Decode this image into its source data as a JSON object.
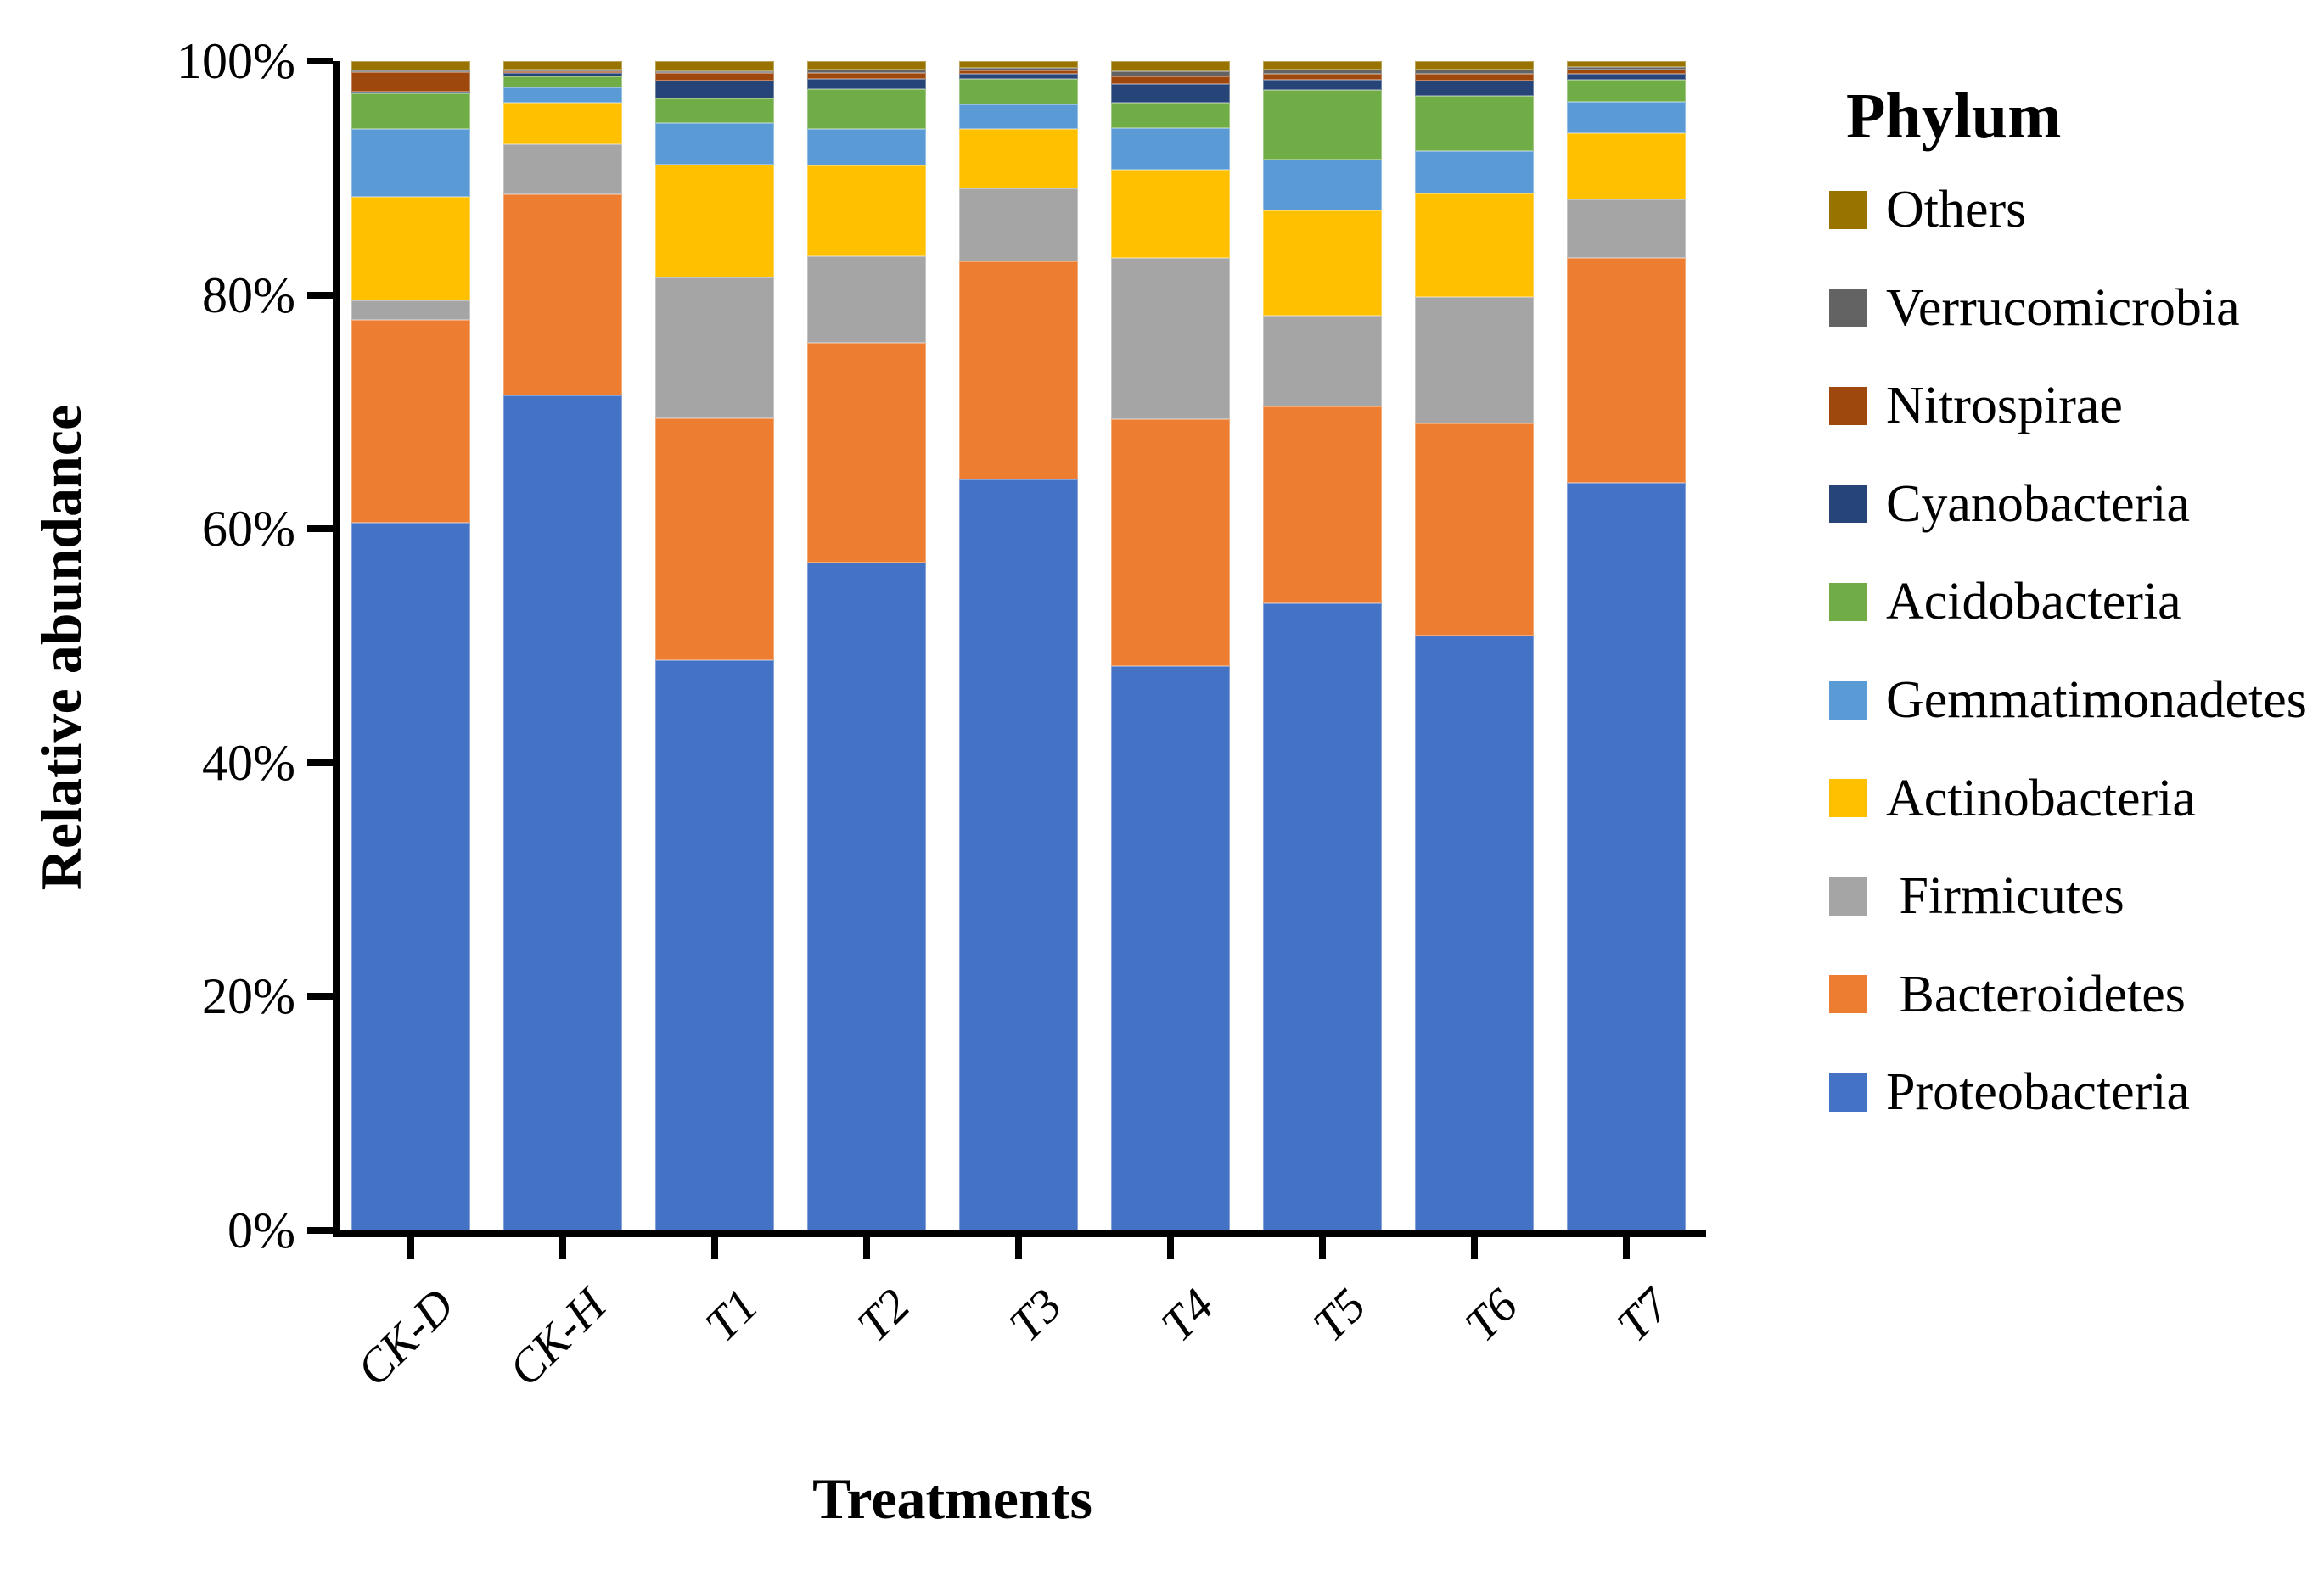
{
  "chart_data": {
    "type": "bar",
    "stacked": true,
    "percent_stacked": true,
    "grid": false,
    "legend_position": "right",
    "legend_title": "Phylum",
    "xlabel": "Treatments",
    "ylabel": "Relative abundance",
    "ylim": [
      0,
      100
    ],
    "y_ticks": [
      {
        "value": 0,
        "label": "0%"
      },
      {
        "value": 20,
        "label": "20%"
      },
      {
        "value": 40,
        "label": "40%"
      },
      {
        "value": 60,
        "label": "60%"
      },
      {
        "value": 80,
        "label": "80%"
      },
      {
        "value": 100,
        "label": "100%"
      }
    ],
    "categories": [
      "CK-D",
      "CK-H",
      "T1",
      "T2",
      "T3",
      "T4",
      "T5",
      "T6",
      "T7"
    ],
    "series_bottom_to_top": [
      {
        "name": "Proteobacteria",
        "color": "#4472C4",
        "values": [
          60.55,
          71.45,
          48.8,
          57.1,
          64.2,
          48.25,
          53.6,
          50.9,
          63.9
        ]
      },
      {
        "name": "Bacteroidetes",
        "color": "#ED7D31",
        "values": [
          17.35,
          17.25,
          20.7,
          18.8,
          18.7,
          21.15,
          16.9,
          18.15,
          19.25
        ]
      },
      {
        "name": "Firmicutes",
        "color": "#A5A5A5",
        "values": [
          1.7,
          4.3,
          12.05,
          7.4,
          6.2,
          13.75,
          7.75,
          10.75,
          5.05
        ]
      },
      {
        "name": "Actinobacteria",
        "color": "#FFC000",
        "values": [
          8.8,
          3.5,
          9.65,
          7.8,
          5.1,
          7.55,
          9.0,
          8.85,
          5.65
        ]
      },
      {
        "name": "Gemmatimonadetes",
        "color": "#5B9BD5",
        "values": [
          5.8,
          1.35,
          3.55,
          3.1,
          2.1,
          3.6,
          4.35,
          3.65,
          2.65
        ]
      },
      {
        "name": "Acidobacteria",
        "color": "#70AD47",
        "values": [
          3.05,
          0.9,
          2.1,
          3.4,
          2.2,
          2.15,
          5.95,
          4.75,
          1.9
        ]
      },
      {
        "name": "Cyanobacteria",
        "color": "#264478",
        "values": [
          0.2,
          0.35,
          1.5,
          0.85,
          0.45,
          1.6,
          0.85,
          1.25,
          0.5
        ]
      },
      {
        "name": "Nitrospirae",
        "color": "#9E480E",
        "values": [
          1.65,
          0.1,
          0.65,
          0.55,
          0.25,
          0.65,
          0.55,
          0.65,
          0.35
        ]
      },
      {
        "name": "Verrucomicrobia",
        "color": "#636363",
        "values": [
          0.1,
          0.1,
          0.1,
          0.25,
          0.25,
          0.4,
          0.3,
          0.3,
          0.25
        ]
      },
      {
        "name": "Others",
        "color": "#997300",
        "values": [
          0.8,
          0.7,
          0.9,
          0.75,
          0.55,
          0.9,
          0.75,
          0.75,
          0.5
        ]
      }
    ],
    "legend_items_top_to_bottom": [
      {
        "name": "Others",
        "label": "Others",
        "color": "#997300"
      },
      {
        "name": "Verrucomicrobia",
        "label": "Verrucomicrobia",
        "color": "#636363"
      },
      {
        "name": "Nitrospirae",
        "label": "Nitrospirae",
        "color": "#9E480E"
      },
      {
        "name": "Cyanobacteria",
        "label": "Cyanobacteria",
        "color": "#264478"
      },
      {
        "name": "Acidobacteria",
        "label": "Acidobacteria",
        "color": "#70AD47"
      },
      {
        "name": "Gemmatimonadetes",
        "label": "Gemmatimonadetes",
        "color": "#5B9BD5"
      },
      {
        "name": "Actinobacteria",
        "label": "Actinobacteria",
        "color": "#FFC000"
      },
      {
        "name": "Firmicutes",
        "label": " Firmicutes",
        "color": "#A5A5A5"
      },
      {
        "name": "Bacteroidetes",
        "label": " Bacteroidetes",
        "color": "#ED7D31"
      },
      {
        "name": "Proteobacteria",
        "label": "Proteobacteria",
        "color": "#4472C4"
      }
    ],
    "axis_color": "#000000",
    "background_color": "#FFFFFF"
  }
}
